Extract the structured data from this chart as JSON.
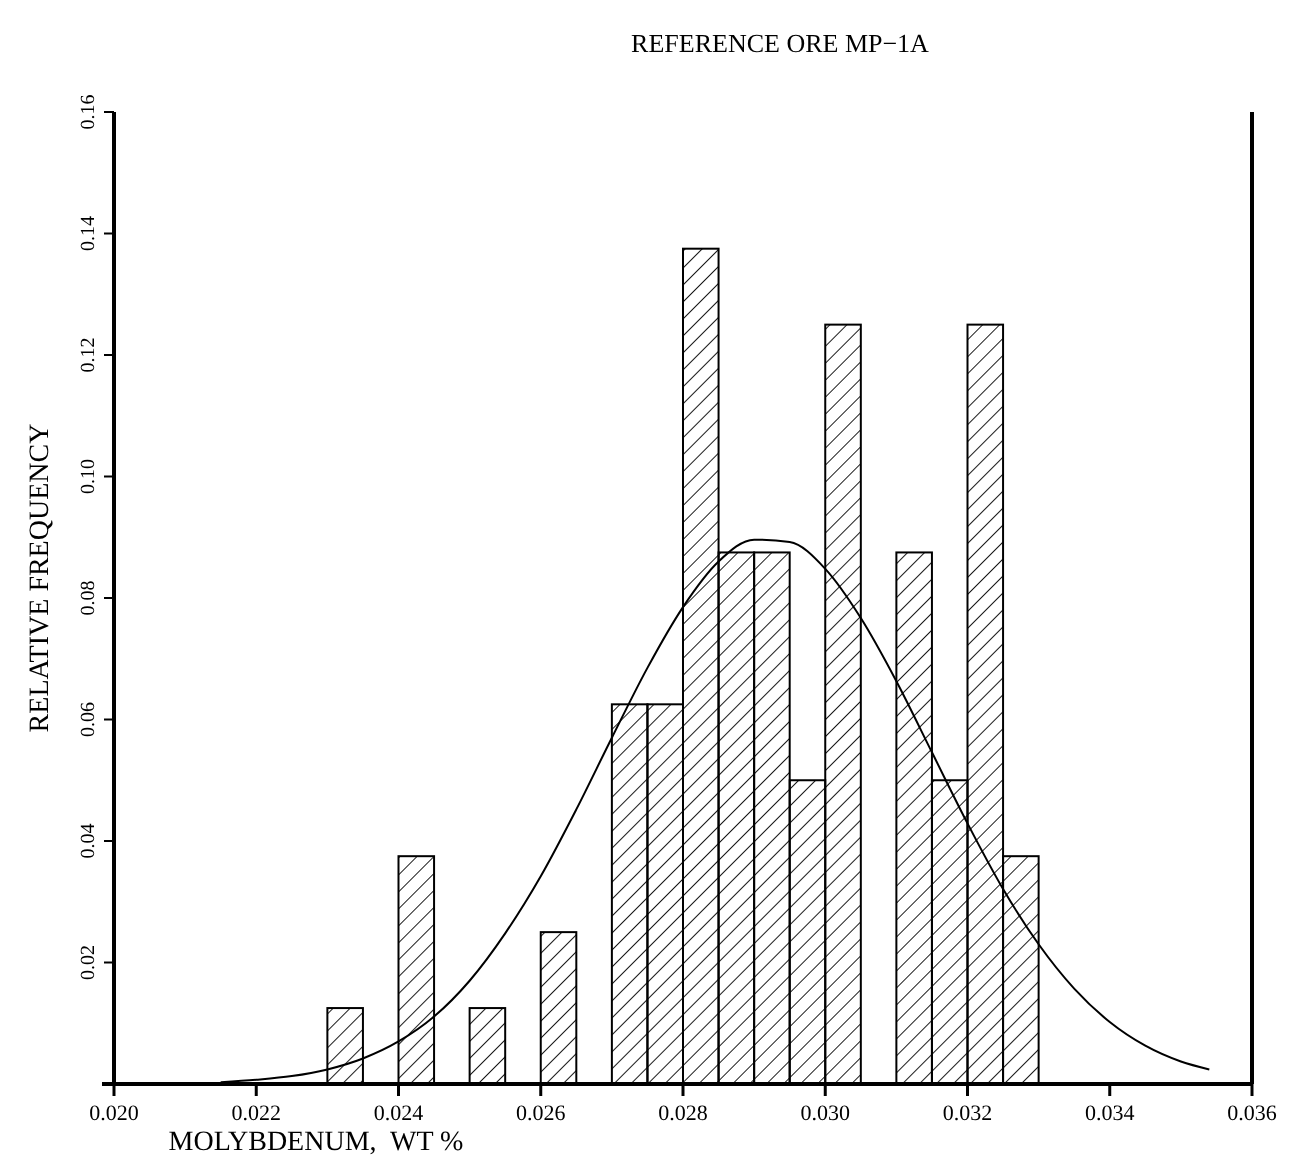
{
  "chart_data": {
    "type": "histogram",
    "title": "REFERENCE ORE MP−1A",
    "xlabel": "MOLYBDENUM,  WT %",
    "ylabel": "RELATIVE FREQUENCY",
    "bins": [
      0.023,
      0.0235,
      0.024,
      0.0245,
      0.025,
      0.0255,
      0.026,
      0.0265,
      0.027,
      0.0275,
      0.028,
      0.0285,
      0.029,
      0.0295,
      0.03,
      0.0305,
      0.031,
      0.0315,
      0.032,
      0.0325,
      0.033
    ],
    "series": [
      {
        "color": "#000000",
        "values": [
          0.0125,
          0,
          0.0375,
          0,
          0.0125,
          0,
          0.025,
          0,
          0.0625,
          0.0625,
          0.1375,
          0.0875,
          0.0875,
          0.05,
          0.125,
          0,
          0.0875,
          0.05,
          0.125,
          0.0375
        ]
      },
      {
        "type": "line",
        "color": "#000000",
        "x": [
          0.0215,
          0.022,
          0.0225,
          0.023,
          0.0235,
          0.024,
          0.0245,
          0.025,
          0.0255,
          0.026,
          0.0265,
          0.027,
          0.0275,
          0.028,
          0.0285,
          0.029,
          0.0295,
          0.03,
          0.0305,
          0.031,
          0.0315,
          0.032,
          0.0325,
          0.033,
          0.0335,
          0.034,
          0.0345,
          0.035,
          0.0354
        ],
        "values": [
          0.0003,
          0.0007,
          0.0013,
          0.0024,
          0.0042,
          0.007,
          0.0111,
          0.017,
          0.0248,
          0.0342,
          0.0452,
          0.057,
          0.0685,
          0.0785,
          0.086,
          0.0896,
          0.0892,
          0.0848,
          0.0767,
          0.0663,
          0.0546,
          0.0429,
          0.0321,
          0.023,
          0.0157,
          0.0102,
          0.0063,
          0.0037,
          0.0024
        ]
      }
    ],
    "xlim": [
      0.02,
      0.036
    ],
    "ylim": [
      0,
      0.16
    ],
    "xticks": [
      {
        "value": 0.02,
        "label": "0.020"
      },
      {
        "value": 0.022,
        "label": "0.022"
      },
      {
        "value": 0.024,
        "label": "0.024"
      },
      {
        "value": 0.026,
        "label": "0.026"
      },
      {
        "value": 0.028,
        "label": "0.028"
      },
      {
        "value": 0.03,
        "label": "0.030"
      },
      {
        "value": 0.032,
        "label": "0.032"
      },
      {
        "value": 0.034,
        "label": "0.034"
      },
      {
        "value": 0.036,
        "label": "0.036"
      }
    ],
    "yticks": [
      0.02,
      0.04,
      0.06,
      0.08,
      {
        "value": 0.1,
        "label": "0.10"
      },
      0.12,
      0.14,
      0.16
    ],
    "grid": false
  }
}
